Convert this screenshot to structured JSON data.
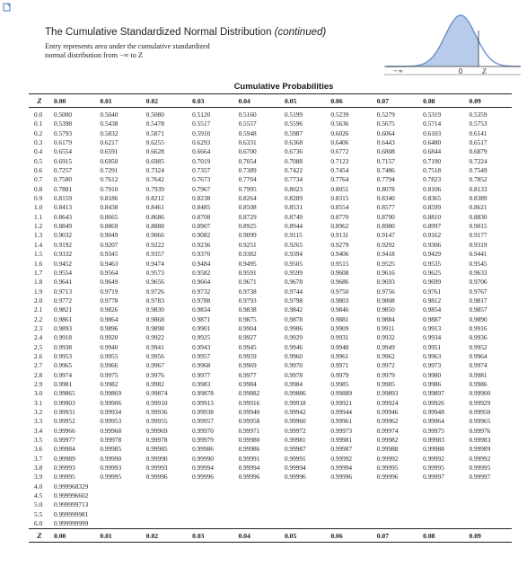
{
  "header": {
    "title_main": "The Cumulative Standardized Normal Distribution ",
    "title_italic": "(continued)",
    "description_line1": "Entry represents area under the cumulative standardized",
    "description_line2": "normal distribution from −∞ to Z"
  },
  "figure": {
    "minus_infinity": "−∞",
    "zero_label": "0",
    "z_label": "Z",
    "curve_color": "#6a8fd0",
    "shade_color": "#b9cbea"
  },
  "table": {
    "caption": "Cumulative Probabilities",
    "z_header": "Z",
    "column_headers": [
      "0.00",
      "0.01",
      "0.02",
      "0.03",
      "0.04",
      "0.05",
      "0.06",
      "0.07",
      "0.08",
      "0.09"
    ],
    "rows": [
      {
        "z": "0.0",
        "values": [
          "0.5000",
          "0.5040",
          "0.5080",
          "0.5120",
          "0.5160",
          "0.5199",
          "0.5239",
          "0.5279",
          "0.5319",
          "0.5359"
        ]
      },
      {
        "z": "0.1",
        "values": [
          "0.5398",
          "0.5438",
          "0.5478",
          "0.5517",
          "0.5557",
          "0.5596",
          "0.5636",
          "0.5675",
          "0.5714",
          "0.5753"
        ]
      },
      {
        "z": "0.2",
        "values": [
          "0.5793",
          "0.5832",
          "0.5871",
          "0.5910",
          "0.5948",
          "0.5987",
          "0.6026",
          "0.6064",
          "0.6103",
          "0.6141"
        ]
      },
      {
        "z": "0.3",
        "values": [
          "0.6179",
          "0.6217",
          "0.6255",
          "0.6293",
          "0.6331",
          "0.6368",
          "0.6406",
          "0.6443",
          "0.6480",
          "0.6517"
        ]
      },
      {
        "z": "0.4",
        "values": [
          "0.6554",
          "0.6591",
          "0.6628",
          "0.6664",
          "0.6700",
          "0.6736",
          "0.6772",
          "0.6808",
          "0.6844",
          "0.6879"
        ]
      },
      {
        "z": "0.5",
        "values": [
          "0.6915",
          "0.6950",
          "0.6985",
          "0.7019",
          "0.7054",
          "0.7088",
          "0.7123",
          "0.7157",
          "0.7190",
          "0.7224"
        ]
      },
      {
        "z": "0.6",
        "values": [
          "0.7257",
          "0.7291",
          "0.7324",
          "0.7357",
          "0.7389",
          "0.7422",
          "0.7454",
          "0.7486",
          "0.7518",
          "0.7549"
        ]
      },
      {
        "z": "0.7",
        "values": [
          "0.7580",
          "0.7612",
          "0.7642",
          "0.7673",
          "0.7704",
          "0.7734",
          "0.7764",
          "0.7794",
          "0.7823",
          "0.7852"
        ]
      },
      {
        "z": "0.8",
        "values": [
          "0.7881",
          "0.7910",
          "0.7939",
          "0.7967",
          "0.7995",
          "0.8023",
          "0.8051",
          "0.8078",
          "0.8106",
          "0.8133"
        ]
      },
      {
        "z": "0.9",
        "values": [
          "0.8159",
          "0.8186",
          "0.8212",
          "0.8238",
          "0.8264",
          "0.8289",
          "0.8315",
          "0.8340",
          "0.8365",
          "0.8389"
        ]
      },
      {
        "z": "1.0",
        "values": [
          "0.8413",
          "0.8438",
          "0.8461",
          "0.8485",
          "0.8508",
          "0.8531",
          "0.8554",
          "0.8577",
          "0.8599",
          "0.8621"
        ]
      },
      {
        "z": "1.1",
        "values": [
          "0.8643",
          "0.8665",
          "0.8686",
          "0.8708",
          "0.8729",
          "0.8749",
          "0.8770",
          "0.8790",
          "0.8810",
          "0.8830"
        ]
      },
      {
        "z": "1.2",
        "values": [
          "0.8849",
          "0.8869",
          "0.8888",
          "0.8907",
          "0.8925",
          "0.8944",
          "0.8962",
          "0.8980",
          "0.8997",
          "0.9015"
        ]
      },
      {
        "z": "1.3",
        "values": [
          "0.9032",
          "0.9049",
          "0.9066",
          "0.9082",
          "0.9099",
          "0.9115",
          "0.9131",
          "0.9147",
          "0.9162",
          "0.9177"
        ]
      },
      {
        "z": "1.4",
        "values": [
          "0.9192",
          "0.9207",
          "0.9222",
          "0.9236",
          "0.9251",
          "0.9265",
          "0.9279",
          "0.9292",
          "0.9306",
          "0.9319"
        ]
      },
      {
        "z": "1.5",
        "values": [
          "0.9332",
          "0.9345",
          "0.9357",
          "0.9370",
          "0.9382",
          "0.9394",
          "0.9406",
          "0.9418",
          "0.9429",
          "0.9441"
        ]
      },
      {
        "z": "1.6",
        "values": [
          "0.9452",
          "0.9463",
          "0.9474",
          "0.9484",
          "0.9495",
          "0.9505",
          "0.9515",
          "0.9525",
          "0.9535",
          "0.9545"
        ]
      },
      {
        "z": "1.7",
        "values": [
          "0.9554",
          "0.9564",
          "0.9573",
          "0.9582",
          "0.9591",
          "0.9599",
          "0.9608",
          "0.9616",
          "0.9625",
          "0.9633"
        ]
      },
      {
        "z": "1.8",
        "values": [
          "0.9641",
          "0.9649",
          "0.9656",
          "0.9664",
          "0.9671",
          "0.9678",
          "0.9686",
          "0.9693",
          "0.9699",
          "0.9706"
        ]
      },
      {
        "z": "1.9",
        "values": [
          "0.9713",
          "0.9719",
          "0.9726",
          "0.9732",
          "0.9738",
          "0.9744",
          "0.9750",
          "0.9756",
          "0.9761",
          "0.9767"
        ]
      },
      {
        "z": "2.0",
        "values": [
          "0.9772",
          "0.9778",
          "0.9783",
          "0.9788",
          "0.9793",
          "0.9798",
          "0.9803",
          "0.9808",
          "0.9812",
          "0.9817"
        ]
      },
      {
        "z": "2.1",
        "values": [
          "0.9821",
          "0.9826",
          "0.9830",
          "0.9834",
          "0.9838",
          "0.9842",
          "0.9846",
          "0.9850",
          "0.9854",
          "0.9857"
        ]
      },
      {
        "z": "2.2",
        "values": [
          "0.9861",
          "0.9864",
          "0.9868",
          "0.9871",
          "0.9875",
          "0.9878",
          "0.9881",
          "0.9884",
          "0.9887",
          "0.9890"
        ]
      },
      {
        "z": "2.3",
        "values": [
          "0.9893",
          "0.9896",
          "0.9898",
          "0.9901",
          "0.9904",
          "0.9906",
          "0.9909",
          "0.9911",
          "0.9913",
          "0.9916"
        ]
      },
      {
        "z": "2.4",
        "values": [
          "0.9918",
          "0.9920",
          "0.9922",
          "0.9925",
          "0.9927",
          "0.9929",
          "0.9931",
          "0.9932",
          "0.9934",
          "0.9936"
        ]
      },
      {
        "z": "2.5",
        "values": [
          "0.9938",
          "0.9940",
          "0.9941",
          "0.9943",
          "0.9945",
          "0.9946",
          "0.9948",
          "0.9949",
          "0.9951",
          "0.9952"
        ]
      },
      {
        "z": "2.6",
        "values": [
          "0.9953",
          "0.9955",
          "0.9956",
          "0.9957",
          "0.9959",
          "0.9960",
          "0.9961",
          "0.9962",
          "0.9963",
          "0.9964"
        ]
      },
      {
        "z": "2.7",
        "values": [
          "0.9965",
          "0.9966",
          "0.9967",
          "0.9968",
          "0.9969",
          "0.9970",
          "0.9971",
          "0.9972",
          "0.9973",
          "0.9974"
        ]
      },
      {
        "z": "2.8",
        "values": [
          "0.9974",
          "0.9975",
          "0.9976",
          "0.9977",
          "0.9977",
          "0.9978",
          "0.9979",
          "0.9979",
          "0.9980",
          "0.9981"
        ]
      },
      {
        "z": "2.9",
        "values": [
          "0.9981",
          "0.9982",
          "0.9982",
          "0.9983",
          "0.9984",
          "0.9984",
          "0.9985",
          "0.9985",
          "0.9986",
          "0.9986"
        ]
      },
      {
        "z": "3.0",
        "values": [
          "0.99865",
          "0.99869",
          "0.99874",
          "0.99878",
          "0.99882",
          "0.99886",
          "0.99889",
          "0.99893",
          "0.99897",
          "0.99900"
        ]
      },
      {
        "z": "3.1",
        "values": [
          "0.99903",
          "0.99906",
          "0.99910",
          "0.99913",
          "0.99916",
          "0.99918",
          "0.99921",
          "0.99924",
          "0.99926",
          "0.99929"
        ]
      },
      {
        "z": "3.2",
        "values": [
          "0.99931",
          "0.99934",
          "0.99936",
          "0.99938",
          "0.99940",
          "0.99942",
          "0.99944",
          "0.99946",
          "0.99948",
          "0.99950"
        ]
      },
      {
        "z": "3.3",
        "values": [
          "0.99952",
          "0.99953",
          "0.99955",
          "0.99957",
          "0.99958",
          "0.99960",
          "0.99961",
          "0.99962",
          "0.99964",
          "0.99965"
        ]
      },
      {
        "z": "3.4",
        "values": [
          "0.99966",
          "0.99968",
          "0.99969",
          "0.99970",
          "0.99971",
          "0.99972",
          "0.99973",
          "0.99974",
          "0.99975",
          "0.99976"
        ]
      },
      {
        "z": "3.5",
        "values": [
          "0.99977",
          "0.99978",
          "0.99978",
          "0.99979",
          "0.99980",
          "0.99981",
          "0.99981",
          "0.99982",
          "0.99983",
          "0.99983"
        ]
      },
      {
        "z": "3.6",
        "values": [
          "0.99984",
          "0.99985",
          "0.99985",
          "0.99986",
          "0.99986",
          "0.99987",
          "0.99987",
          "0.99988",
          "0.99988",
          "0.99989"
        ]
      },
      {
        "z": "3.7",
        "values": [
          "0.99989",
          "0.99990",
          "0.99990",
          "0.99990",
          "0.99991",
          "0.99991",
          "0.99992",
          "0.99992",
          "0.99992",
          "0.99992"
        ]
      },
      {
        "z": "3.8",
        "values": [
          "0.99993",
          "0.99993",
          "0.99993",
          "0.99994",
          "0.99994",
          "0.99994",
          "0.99994",
          "0.99995",
          "0.99995",
          "0.99995"
        ]
      },
      {
        "z": "3.9",
        "values": [
          "0.99995",
          "0.99995",
          "0.99996",
          "0.99996",
          "0.99996",
          "0.99996",
          "0.99996",
          "0.99996",
          "0.99997",
          "0.99997"
        ]
      },
      {
        "z": "4.0",
        "values": [
          "0.999968329"
        ]
      },
      {
        "z": "4.5",
        "values": [
          "0.999996602"
        ]
      },
      {
        "z": "5.0",
        "values": [
          "0.999999713"
        ]
      },
      {
        "z": "5.5",
        "values": [
          "0.999999981"
        ]
      },
      {
        "z": "6.0",
        "values": [
          "0.999999999"
        ]
      }
    ]
  }
}
